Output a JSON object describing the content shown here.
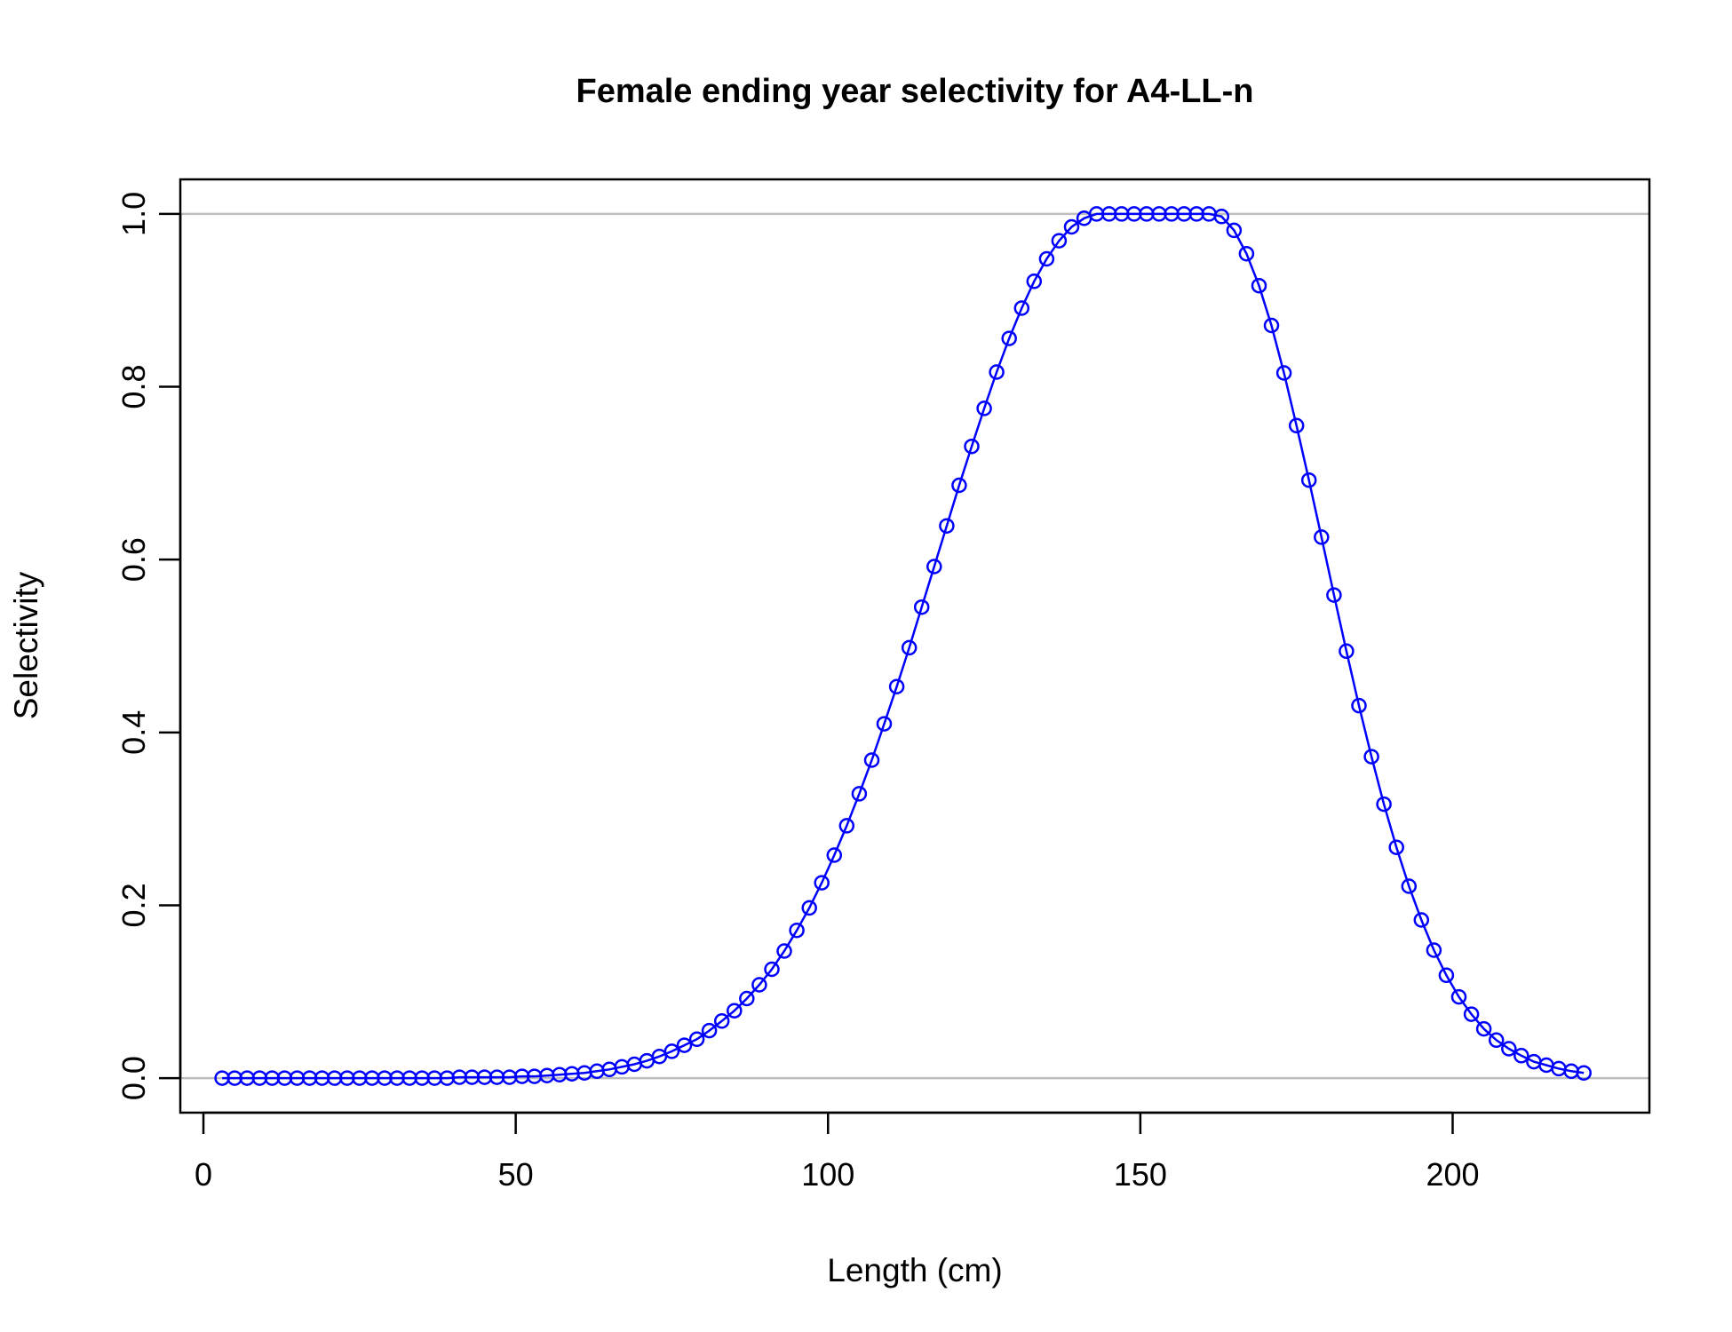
{
  "chart_data": {
    "type": "line",
    "title": "Female ending year selectivity for A4-LL-n",
    "xlabel": "Length (cm)",
    "ylabel": "Selectivity",
    "xlim": [
      -3.7,
      231.5
    ],
    "ylim": [
      -0.04,
      1.04
    ],
    "xticks": [
      0,
      50,
      100,
      150,
      200
    ],
    "yticks": [
      0.0,
      0.2,
      0.4,
      0.6,
      0.8,
      1.0
    ],
    "xtick_labels": [
      "0",
      "50",
      "100",
      "150",
      "200"
    ],
    "ytick_labels": [
      "0.0",
      "0.2",
      "0.4",
      "0.6",
      "0.8",
      "1.0"
    ],
    "reference_lines_y": [
      0,
      1
    ],
    "colors": {
      "series": "#0000FF",
      "reference": "#BEBEBE",
      "axis": "#000000"
    },
    "series": [
      {
        "marker": "open-circle",
        "x": [
          3,
          5,
          7,
          9,
          11,
          13,
          15,
          17,
          19,
          21,
          23,
          25,
          27,
          29,
          31,
          33,
          35,
          37,
          39,
          41,
          43,
          45,
          47,
          49,
          51,
          53,
          55,
          57,
          59,
          61,
          63,
          65,
          67,
          69,
          71,
          73,
          75,
          77,
          79,
          81,
          83,
          85,
          87,
          89,
          91,
          93,
          95,
          97,
          99,
          101,
          103,
          105,
          107,
          109,
          111,
          113,
          115,
          117,
          119,
          121,
          123,
          125,
          127,
          129,
          131,
          133,
          135,
          137,
          139,
          141,
          143,
          145,
          147,
          149,
          151,
          153,
          155,
          157,
          159,
          161,
          163,
          165,
          167,
          169,
          171,
          173,
          175,
          177,
          179,
          181,
          183,
          185,
          187,
          189,
          191,
          193,
          195,
          197,
          199,
          201,
          203,
          205,
          207,
          209,
          211,
          213,
          215,
          217,
          219,
          221
        ],
        "y": [
          0.0,
          0.0,
          0.0,
          0.0,
          0.0,
          0.0,
          0.0,
          0.0,
          0.0,
          0.0,
          0.0,
          0.0,
          0.0,
          0.0,
          0.0,
          0.0,
          0.0,
          0.0,
          0.0,
          0.001,
          0.001,
          0.001,
          0.001,
          0.001,
          0.002,
          0.002,
          0.003,
          0.004,
          0.005,
          0.006,
          0.008,
          0.01,
          0.013,
          0.016,
          0.02,
          0.025,
          0.031,
          0.038,
          0.045,
          0.055,
          0.066,
          0.078,
          0.092,
          0.108,
          0.126,
          0.147,
          0.171,
          0.197,
          0.226,
          0.258,
          0.292,
          0.329,
          0.368,
          0.41,
          0.453,
          0.498,
          0.545,
          0.592,
          0.639,
          0.686,
          0.731,
          0.775,
          0.817,
          0.856,
          0.891,
          0.922,
          0.948,
          0.969,
          0.985,
          0.995,
          1.0,
          1.0,
          1.0,
          1.0,
          1.0,
          1.0,
          1.0,
          1.0,
          1.0,
          1.0,
          0.997,
          0.981,
          0.954,
          0.917,
          0.871,
          0.816,
          0.755,
          0.692,
          0.626,
          0.559,
          0.494,
          0.431,
          0.372,
          0.317,
          0.267,
          0.222,
          0.183,
          0.148,
          0.119,
          0.094,
          0.074,
          0.057,
          0.044,
          0.034,
          0.026,
          0.019,
          0.015,
          0.011,
          0.008,
          0.006
        ]
      }
    ]
  }
}
